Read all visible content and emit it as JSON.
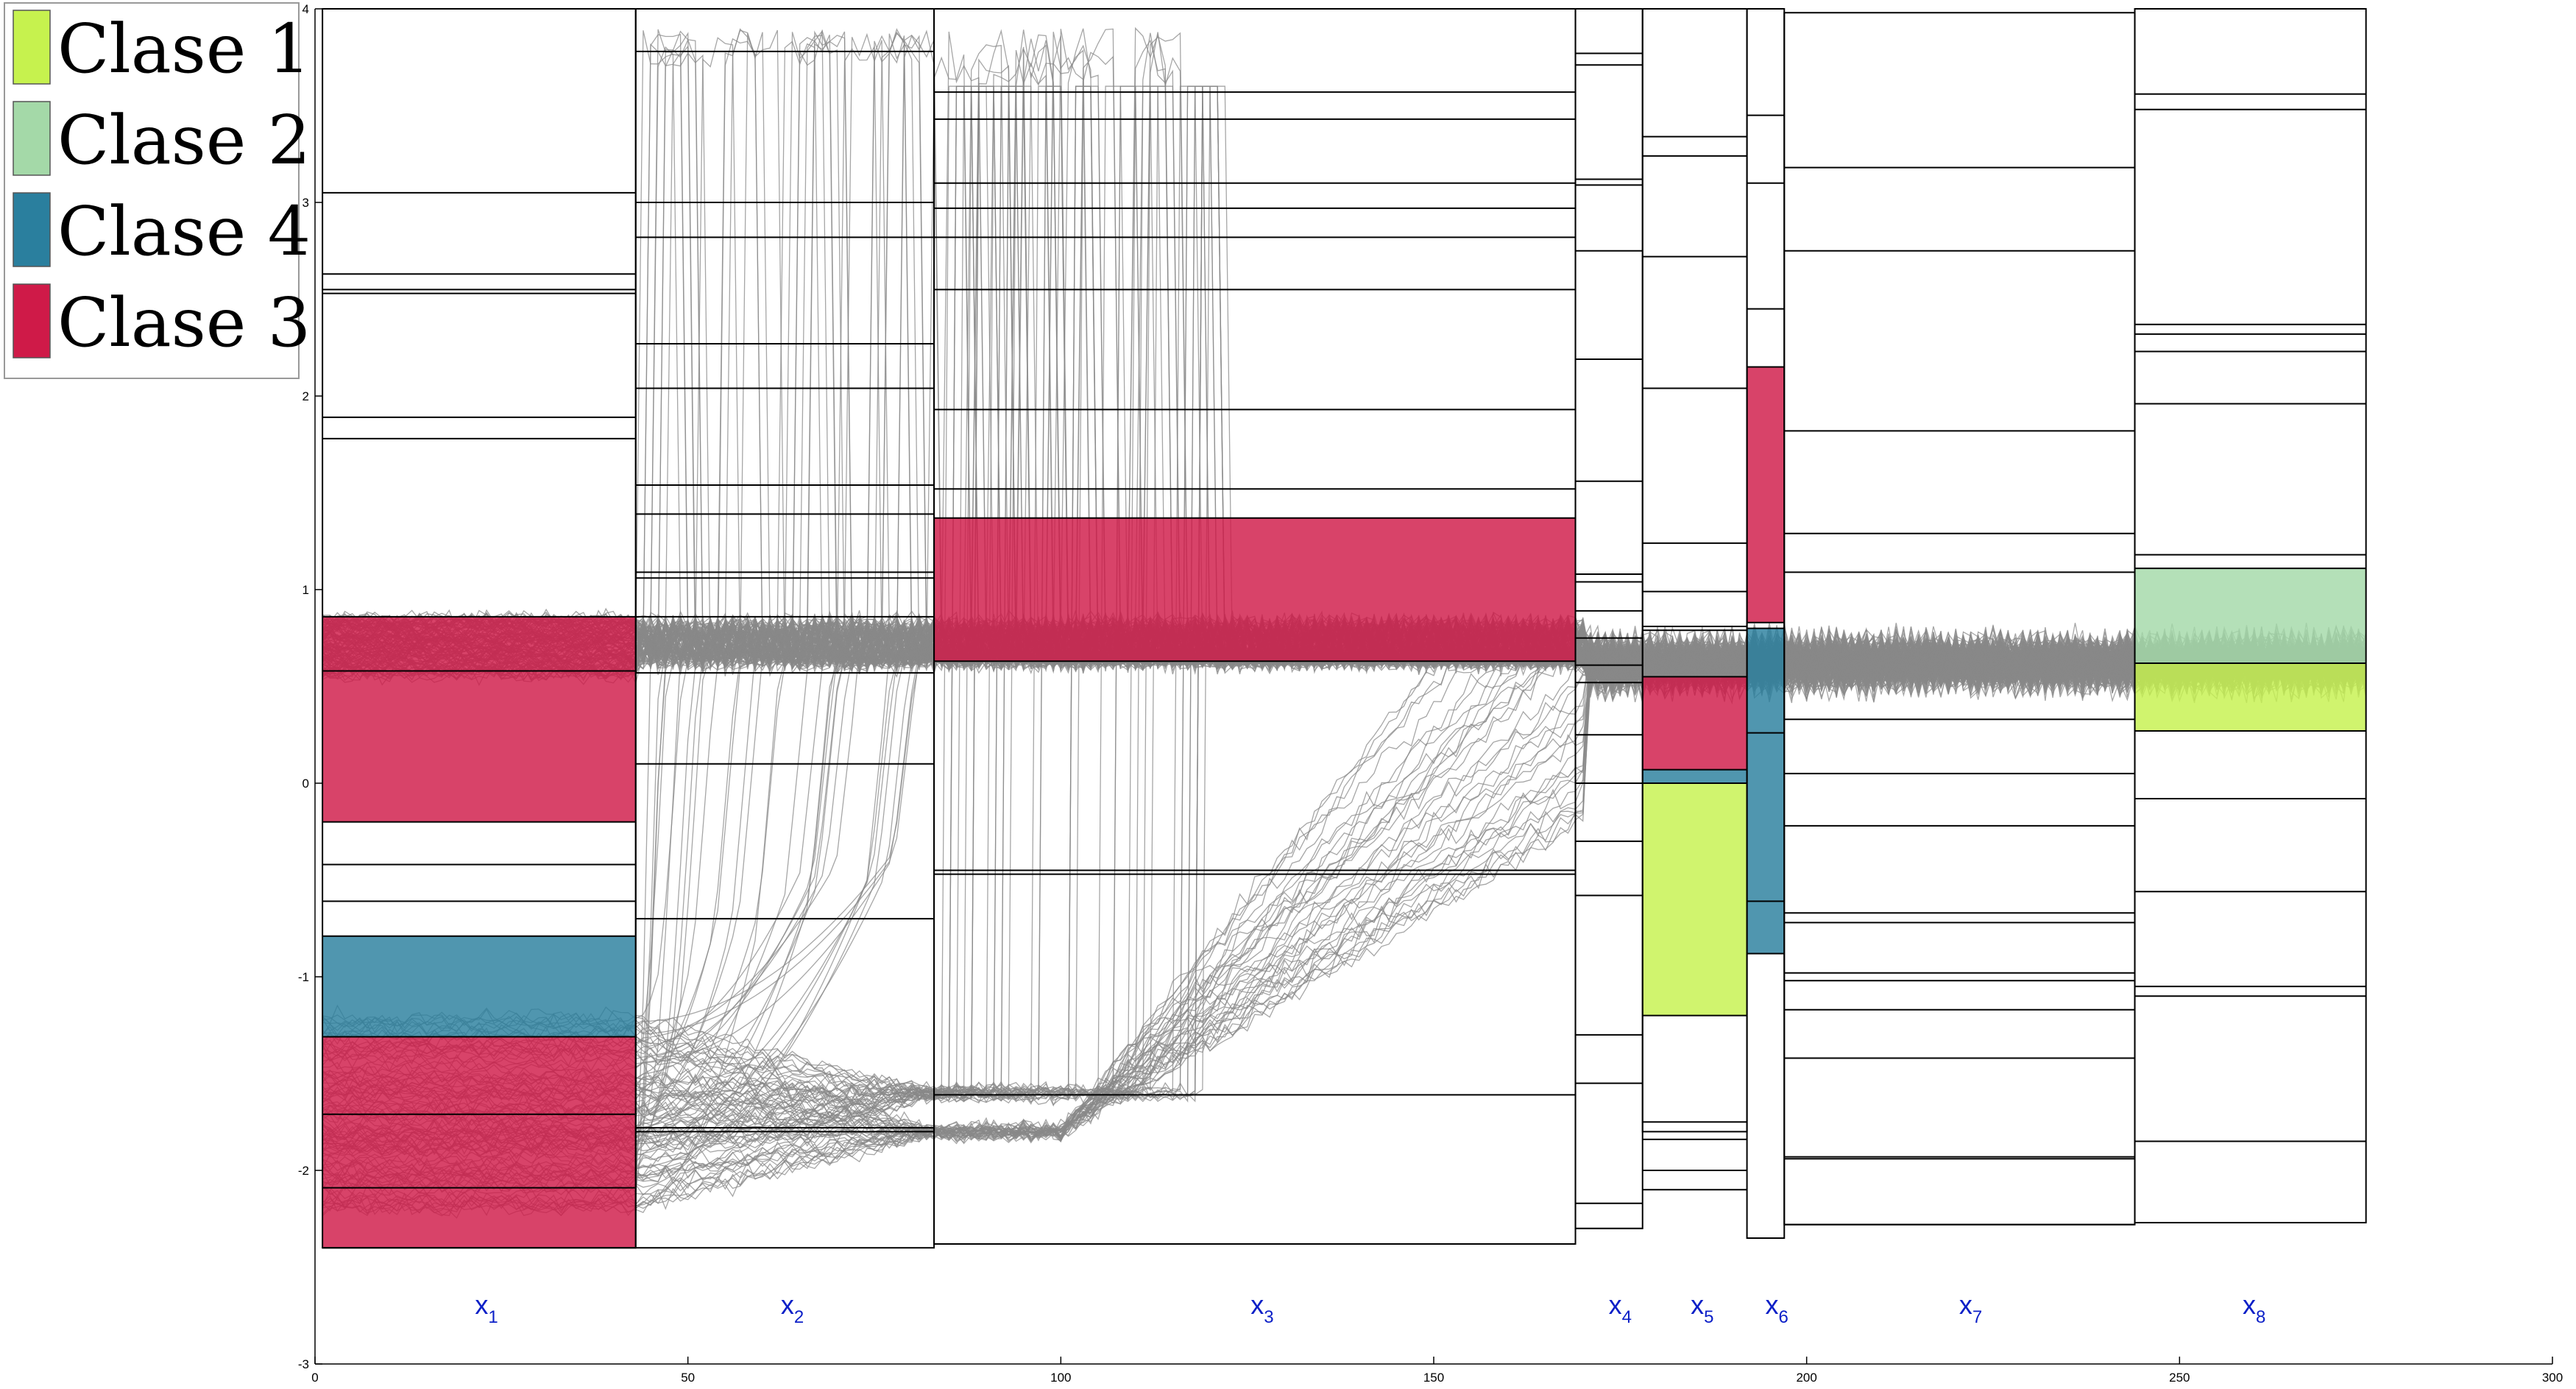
{
  "chart_data": {
    "type": "line",
    "title": "",
    "xlabel": "",
    "ylabel": "",
    "xlim": [
      0,
      300
    ],
    "ylim": [
      -3,
      4
    ],
    "x_ticks": [
      0,
      50,
      100,
      150,
      200,
      250,
      300
    ],
    "y_ticks": [
      -3,
      -2,
      -1,
      0,
      1,
      2,
      3,
      4
    ],
    "grid": false,
    "legend_position": "top-left",
    "legend": [
      {
        "label": "Clase 1",
        "color": "#c6f24e"
      },
      {
        "label": "Clase 2",
        "color": "#a4d9a8"
      },
      {
        "label": "Clase 4",
        "color": "#2a7f9e"
      },
      {
        "label": "Clase 3",
        "color": "#cf1a48"
      }
    ],
    "segment_labels": [
      {
        "base": "x",
        "sub": "1",
        "x": 23
      },
      {
        "base": "x",
        "sub": "2",
        "x": 64
      },
      {
        "base": "x",
        "sub": "3",
        "x": 127
      },
      {
        "base": "x",
        "sub": "4",
        "x": 175
      },
      {
        "base": "x",
        "sub": "5",
        "x": 186
      },
      {
        "base": "x",
        "sub": "6",
        "x": 196
      },
      {
        "base": "x",
        "sub": "7",
        "x": 222
      },
      {
        "base": "x",
        "sub": "8",
        "x": 260
      }
    ],
    "segments": [
      {
        "name": "x1",
        "x_start": 1,
        "x_end": 43,
        "y_min": -2.4,
        "y_max": 4.0,
        "thresholds": [
          3.05,
          2.63,
          2.55,
          2.53,
          1.89,
          1.78,
          0.86,
          0.58,
          -0.2,
          -0.42,
          -0.61,
          -0.79,
          -1.31,
          -1.71,
          -2.09,
          -2.4
        ],
        "regions": [
          {
            "class": "Clase 3",
            "y0": -0.2,
            "y1": 0.86
          },
          {
            "class": "Clase 4",
            "y0": -1.31,
            "y1": -0.79
          },
          {
            "class": "Clase 3",
            "y0": -2.4,
            "y1": -1.31
          }
        ]
      },
      {
        "name": "x2",
        "x_start": 43,
        "x_end": 83,
        "y_min": -2.4,
        "y_max": 4.0,
        "thresholds": [
          3.78,
          3.0,
          2.82,
          2.27,
          2.04,
          1.54,
          1.39,
          1.09,
          1.06,
          0.86,
          0.57,
          0.1,
          -0.7,
          -1.78,
          -1.8
        ],
        "regions": []
      },
      {
        "name": "x3",
        "x_start": 83,
        "x_end": 169,
        "y_min": -2.38,
        "y_max": 4.0,
        "thresholds": [
          3.57,
          3.43,
          3.1,
          2.97,
          2.82,
          2.55,
          1.93,
          1.52,
          1.37,
          0.63,
          -0.45,
          -0.47,
          -1.61,
          -2.38
        ],
        "regions": [
          {
            "class": "Clase 3",
            "y0": 0.63,
            "y1": 1.37
          }
        ]
      },
      {
        "name": "x4",
        "x_start": 169,
        "x_end": 178,
        "y_min": -2.3,
        "y_max": 4.0,
        "thresholds": [
          3.77,
          3.71,
          3.12,
          3.09,
          2.75,
          2.19,
          1.56,
          1.08,
          1.04,
          0.89,
          0.75,
          0.61,
          0.52,
          0.25,
          0.0,
          -0.3,
          -0.58,
          -1.3,
          -1.55,
          -2.17,
          -2.3
        ],
        "regions": []
      },
      {
        "name": "x5",
        "x_start": 178,
        "x_end": 192,
        "y_min": -1.8,
        "y_max": 4.0,
        "thresholds": [
          3.34,
          3.24,
          2.72,
          2.04,
          1.24,
          0.99,
          0.81,
          0.79,
          0.55,
          0.07,
          0.0,
          -1.2,
          -1.75,
          -1.84,
          -2.0,
          -2.1
        ],
        "regions": [
          {
            "class": "Clase 3",
            "y0": 0.07,
            "y1": 0.55
          },
          {
            "class": "Clase 4",
            "y0": 0.0,
            "y1": 0.07
          },
          {
            "class": "Clase 1",
            "y0": -1.2,
            "y1": 0.0
          }
        ]
      },
      {
        "name": "x6",
        "x_start": 192,
        "x_end": 197,
        "y_min": -2.35,
        "y_max": 4.0,
        "thresholds": [
          3.45,
          3.1,
          2.45,
          2.15,
          0.83,
          0.8,
          0.26,
          -0.61,
          -0.88,
          -2.35
        ],
        "regions": [
          {
            "class": "Clase 3",
            "y0": 0.83,
            "y1": 2.15
          },
          {
            "class": "Clase 4",
            "y0": -0.88,
            "y1": 0.8
          }
        ]
      },
      {
        "name": "x7",
        "x_start": 197,
        "x_end": 244,
        "y_min": -2.28,
        "y_max": 3.98,
        "thresholds": [
          3.18,
          2.75,
          1.82,
          1.29,
          1.09,
          0.33,
          0.05,
          -0.22,
          -0.67,
          -0.72,
          -0.98,
          -1.02,
          -1.17,
          -1.42,
          -1.93,
          -1.94,
          -2.28
        ],
        "regions": []
      },
      {
        "name": "x8",
        "x_start": 244,
        "x_end": 275,
        "y_min": -2.27,
        "y_max": 4.0,
        "thresholds": [
          3.56,
          3.48,
          2.37,
          2.32,
          2.23,
          1.96,
          1.18,
          1.11,
          0.62,
          0.27,
          -0.08,
          -0.56,
          -1.05,
          -1.1,
          -1.85,
          -2.27
        ],
        "regions": [
          {
            "class": "Clase 2",
            "y0": 0.62,
            "y1": 1.11
          },
          {
            "class": "Clase 1",
            "y0": 0.27,
            "y1": 0.62
          }
        ]
      }
    ],
    "series_description": {
      "color": "#888888",
      "count": 220,
      "x_range": [
        1,
        275
      ]
    }
  }
}
